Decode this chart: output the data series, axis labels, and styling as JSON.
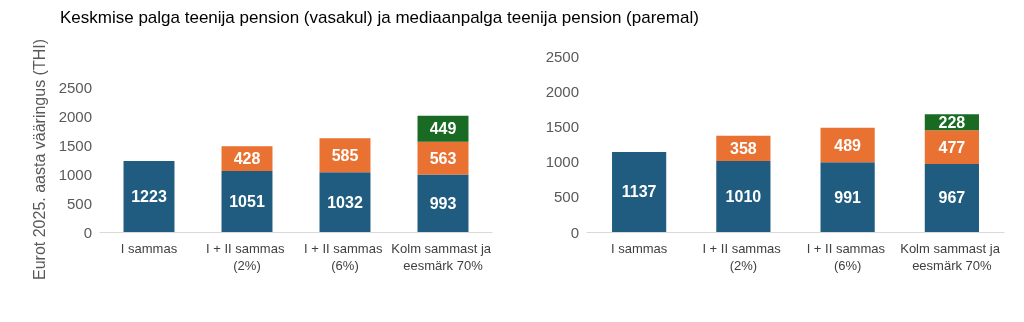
{
  "chart_data": [
    {
      "type": "bar",
      "title": "Keskmise palga teenija pension (vasakul) ja mediaanpalga teenija pension (paremal)",
      "ylabel": "Eurot 2025. aasta vääringus (THI)",
      "categories": [
        "I sammas",
        "I + II sammas (2%)",
        "I + II sammas (6%)",
        "Kolm sammast ja eesmärk 70%"
      ],
      "stacked": true,
      "data_labels": true,
      "ylim": [
        0,
        2500
      ],
      "yticks": [
        0,
        500,
        1000,
        1500,
        2000,
        2500
      ],
      "series": [
        {
          "color": "#1f5c80",
          "values": [
            1223,
            1051,
            1032,
            993
          ]
        },
        {
          "color": "#e97132",
          "values": [
            null,
            428,
            585,
            563
          ]
        },
        {
          "color": "#196b24",
          "values": [
            null,
            null,
            null,
            449
          ]
        }
      ]
    },
    {
      "type": "bar",
      "categories": [
        "I sammas",
        "I + II sammas (2%)",
        "I + II sammas (6%)",
        "Kolm sammast ja eesmärk 70%"
      ],
      "stacked": true,
      "data_labels": true,
      "ylim": [
        0,
        2500
      ],
      "yticks": [
        0,
        500,
        1000,
        1500,
        2000,
        2500
      ],
      "series": [
        {
          "color": "#1f5c80",
          "values": [
            1137,
            1010,
            991,
            967
          ]
        },
        {
          "color": "#e97132",
          "values": [
            null,
            358,
            489,
            477
          ]
        },
        {
          "color": "#196b24",
          "values": [
            null,
            null,
            null,
            228
          ]
        }
      ]
    }
  ]
}
